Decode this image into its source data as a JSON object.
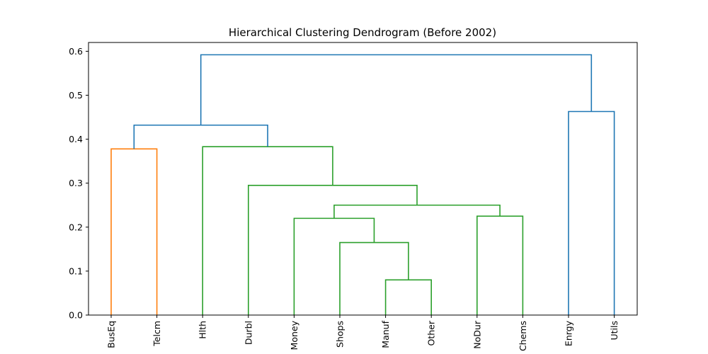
{
  "chart_data": {
    "type": "dendrogram",
    "title": "Hierarchical Clustering Dendrogram (Before 2002)",
    "xlabel": "",
    "ylabel": "",
    "ylim": [
      0,
      0.62
    ],
    "yticks": [
      0.0,
      0.1,
      0.2,
      0.3,
      0.4,
      0.5,
      0.6
    ],
    "ytick_labels": [
      "0.0",
      "0.1",
      "0.2",
      "0.3",
      "0.4",
      "0.5",
      "0.6"
    ],
    "leaves": [
      "BusEq",
      "Telcm",
      "Hlth",
      "Durbl",
      "Money",
      "Shops",
      "Manuf",
      "Other",
      "NoDur",
      "Chems",
      "Enrgy",
      "Utils"
    ],
    "colors": {
      "orange": "#ff7f0e",
      "green": "#2ca02c",
      "blue": "#1f77b4"
    },
    "merges": [
      {
        "left": "Manuf",
        "right": "Other",
        "height": 0.08,
        "color": "green"
      },
      {
        "left": "Shops",
        "right": "Manuf+Other",
        "height": 0.165,
        "color": "green"
      },
      {
        "left": "Money",
        "right": "Shops+Manuf+Other",
        "height": 0.22,
        "color": "green"
      },
      {
        "left": "NoDur",
        "right": "Chems",
        "height": 0.225,
        "color": "green"
      },
      {
        "left": "Money..Other",
        "right": "NoDur+Chems",
        "height": 0.25,
        "color": "green"
      },
      {
        "left": "Durbl",
        "right": "Money..Chems",
        "height": 0.295,
        "color": "green"
      },
      {
        "left": "BusEq",
        "right": "Telcm",
        "height": 0.378,
        "color": "orange"
      },
      {
        "left": "Hlth",
        "right": "Durbl..Chems",
        "height": 0.383,
        "color": "green"
      },
      {
        "left": "BusEq+Telcm",
        "right": "Hlth..Chems",
        "height": 0.432,
        "color": "blue"
      },
      {
        "left": "Enrgy",
        "right": "Utils",
        "height": 0.463,
        "color": "blue"
      },
      {
        "left": "BusEq..Chems",
        "right": "Enrgy+Utils",
        "height": 0.592,
        "color": "blue"
      }
    ]
  }
}
